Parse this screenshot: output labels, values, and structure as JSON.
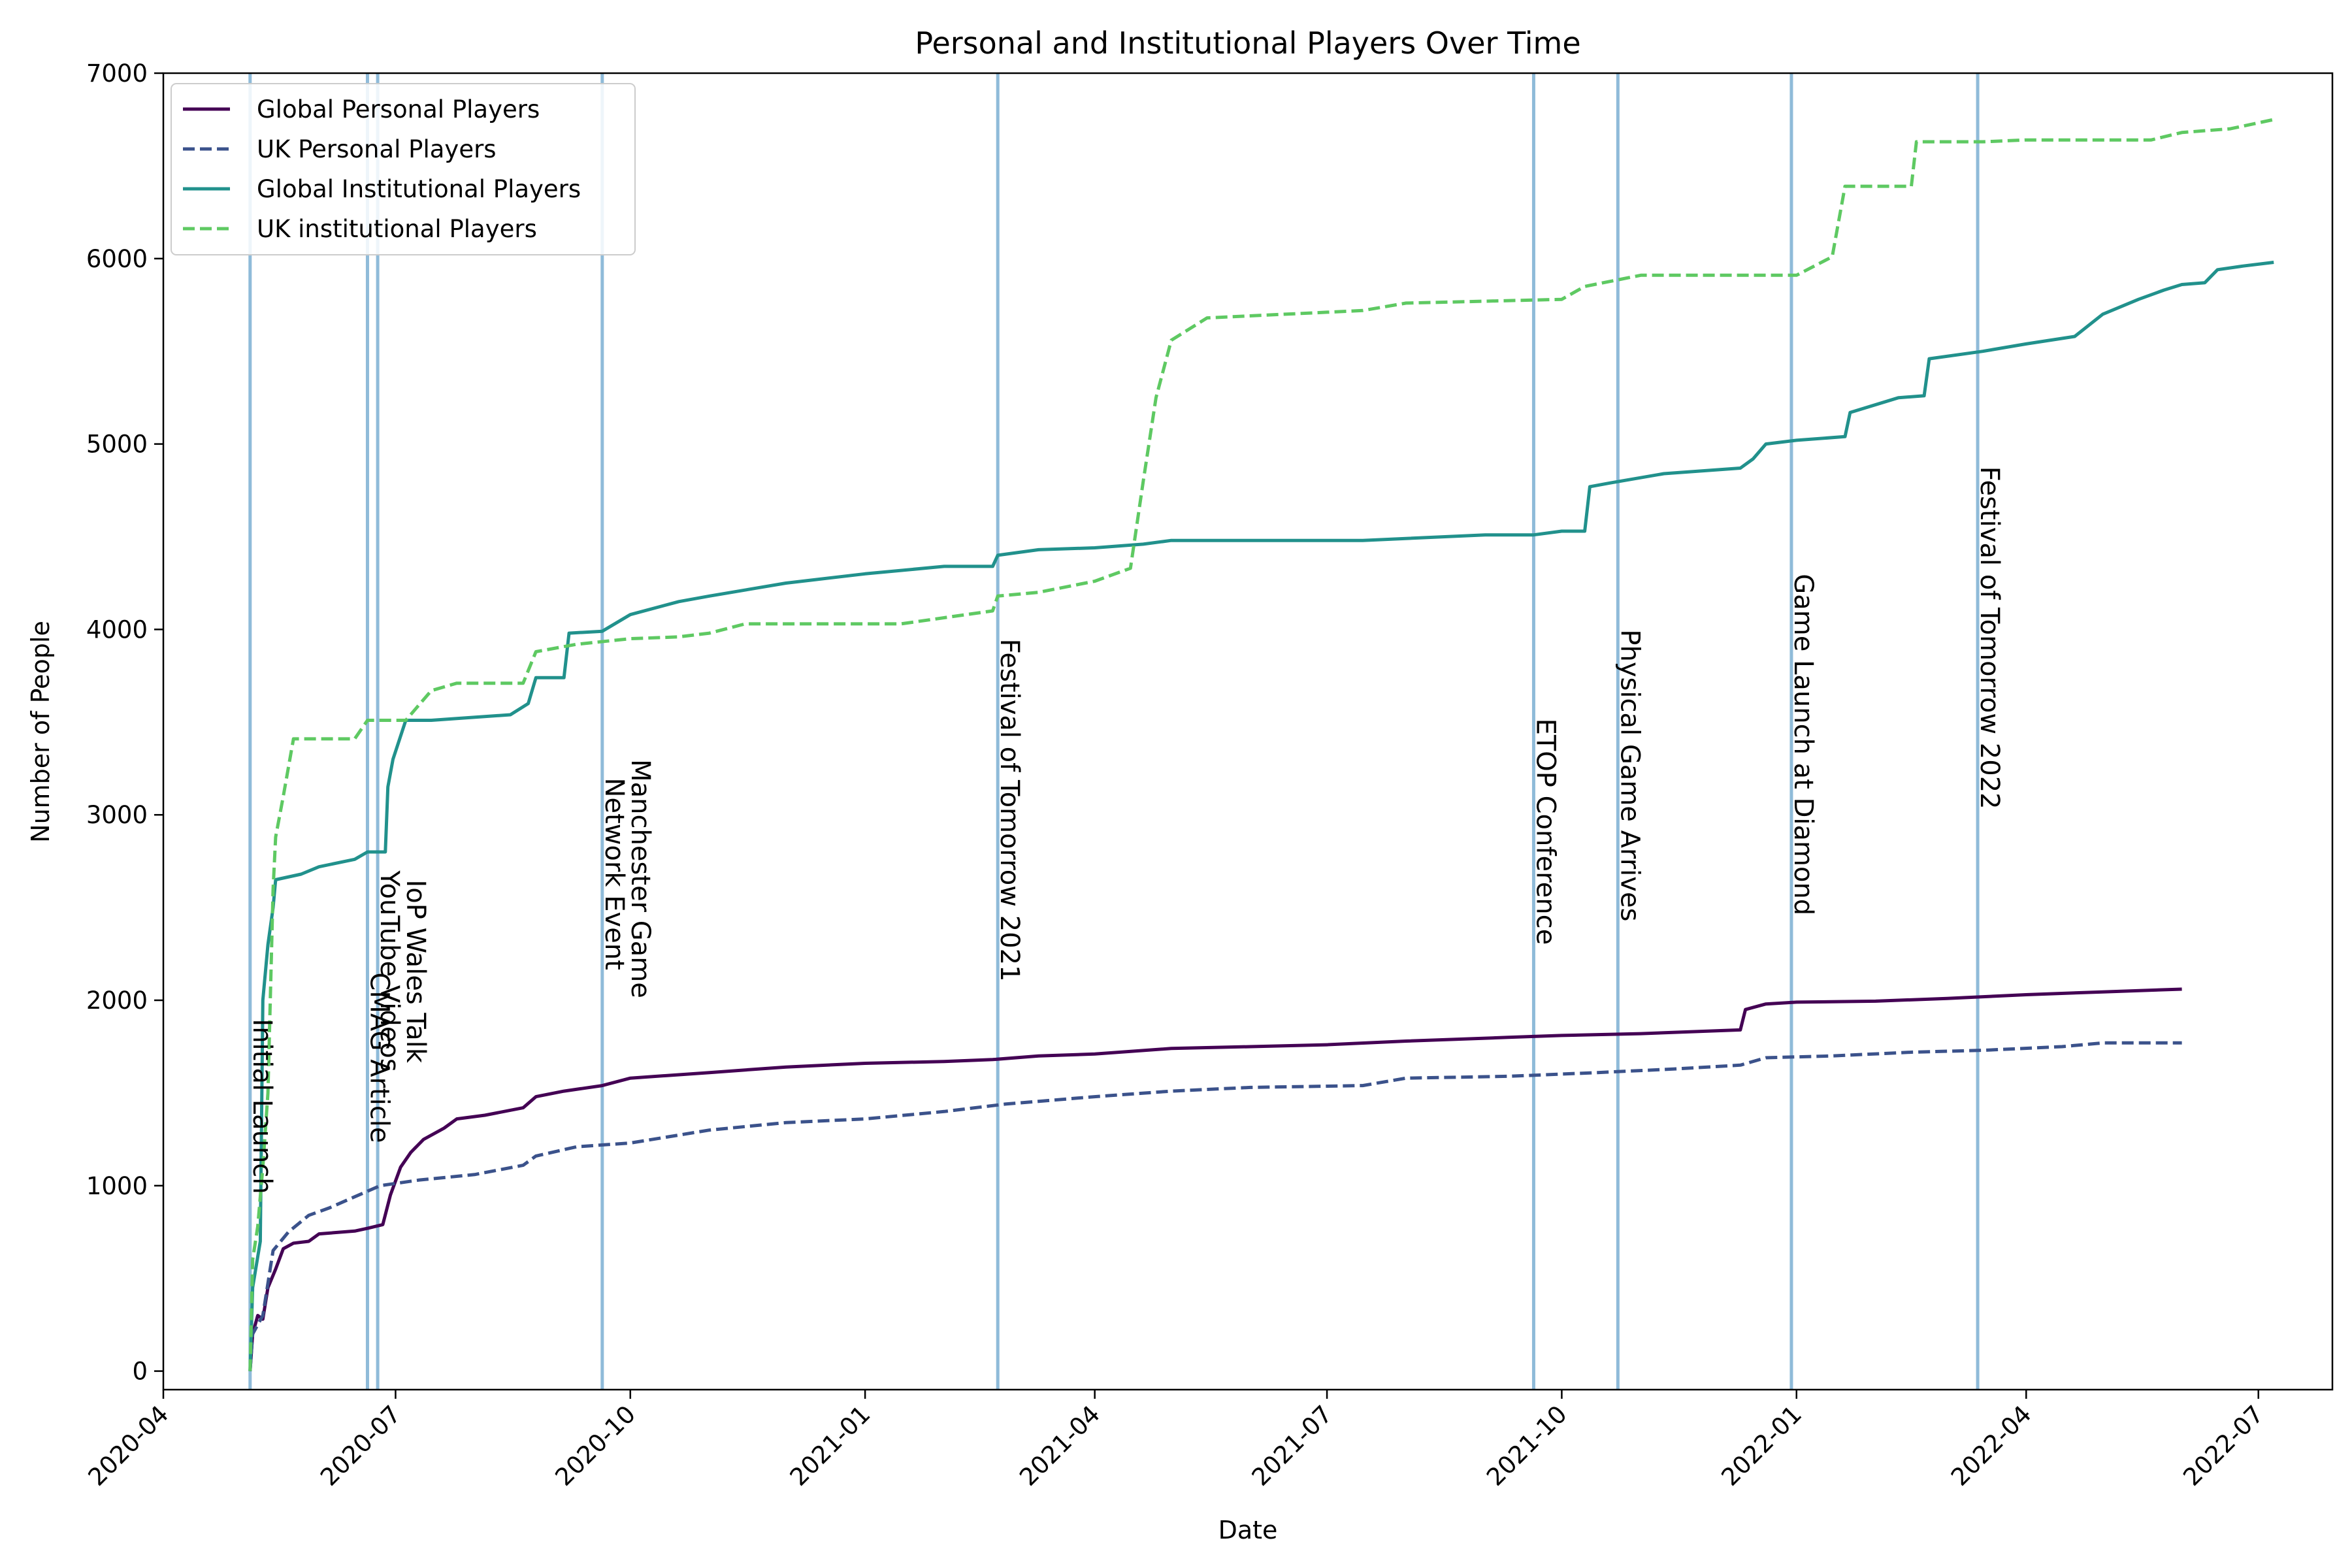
{
  "chart_data": {
    "type": "line",
    "title": "Personal and Institutional Players Over Time",
    "xlabel": "Date",
    "ylabel": "Number of People",
    "ylim": [
      -100,
      7000
    ],
    "xlim": [
      "2020-04-01",
      "2022-07-30"
    ],
    "y_ticks": [
      0,
      1000,
      2000,
      3000,
      4000,
      5000,
      6000,
      7000
    ],
    "x_ticks": [
      "2020-04",
      "2020-07",
      "2020-10",
      "2021-01",
      "2021-04",
      "2021-07",
      "2021-10",
      "2022-01",
      "2022-04",
      "2022-07"
    ],
    "grid": false,
    "legend_position": "top-left",
    "series": [
      {
        "name": "Global Personal Players",
        "color": "#440154",
        "dash": "solid",
        "points": [
          [
            "2020-05-05",
            0
          ],
          [
            "2020-05-06",
            200
          ],
          [
            "2020-05-08",
            300
          ],
          [
            "2020-05-10",
            280
          ],
          [
            "2020-05-12",
            450
          ],
          [
            "2020-05-15",
            550
          ],
          [
            "2020-05-18",
            660
          ],
          [
            "2020-05-22",
            690
          ],
          [
            "2020-05-28",
            700
          ],
          [
            "2020-06-01",
            740
          ],
          [
            "2020-06-15",
            755
          ],
          [
            "2020-06-20",
            770
          ],
          [
            "2020-06-26",
            790
          ],
          [
            "2020-06-29",
            950
          ],
          [
            "2020-07-03",
            1100
          ],
          [
            "2020-07-07",
            1180
          ],
          [
            "2020-07-12",
            1250
          ],
          [
            "2020-07-20",
            1310
          ],
          [
            "2020-07-25",
            1360
          ],
          [
            "2020-08-05",
            1380
          ],
          [
            "2020-08-20",
            1420
          ],
          [
            "2020-08-25",
            1480
          ],
          [
            "2020-09-05",
            1510
          ],
          [
            "2020-09-20",
            1540
          ],
          [
            "2020-10-01",
            1580
          ],
          [
            "2020-11-01",
            1610
          ],
          [
            "2020-12-01",
            1640
          ],
          [
            "2021-01-01",
            1660
          ],
          [
            "2021-02-01",
            1670
          ],
          [
            "2021-02-20",
            1680
          ],
          [
            "2021-03-10",
            1700
          ],
          [
            "2021-04-01",
            1710
          ],
          [
            "2021-05-01",
            1740
          ],
          [
            "2021-06-01",
            1750
          ],
          [
            "2021-07-01",
            1760
          ],
          [
            "2021-08-01",
            1780
          ],
          [
            "2021-09-10",
            1800
          ],
          [
            "2021-10-01",
            1810
          ],
          [
            "2021-11-01",
            1820
          ],
          [
            "2021-12-10",
            1840
          ],
          [
            "2021-12-12",
            1950
          ],
          [
            "2021-12-20",
            1980
          ],
          [
            "2022-01-01",
            1990
          ],
          [
            "2022-02-01",
            1995
          ],
          [
            "2022-03-01",
            2010
          ],
          [
            "2022-04-01",
            2030
          ],
          [
            "2022-05-01",
            2045
          ],
          [
            "2022-06-01",
            2060
          ]
        ]
      },
      {
        "name": "UK Personal Players",
        "color": "#3b528b",
        "dash": "dashed",
        "points": [
          [
            "2020-05-05",
            0
          ],
          [
            "2020-05-06",
            200
          ],
          [
            "2020-05-10",
            300
          ],
          [
            "2020-05-14",
            650
          ],
          [
            "2020-05-20",
            750
          ],
          [
            "2020-05-28",
            840
          ],
          [
            "2020-06-05",
            880
          ],
          [
            "2020-06-15",
            940
          ],
          [
            "2020-06-25",
            1000
          ],
          [
            "2020-07-10",
            1030
          ],
          [
            "2020-08-01",
            1060
          ],
          [
            "2020-08-20",
            1110
          ],
          [
            "2020-08-25",
            1160
          ],
          [
            "2020-09-10",
            1210
          ],
          [
            "2020-10-01",
            1230
          ],
          [
            "2020-11-01",
            1300
          ],
          [
            "2020-12-01",
            1340
          ],
          [
            "2021-01-01",
            1360
          ],
          [
            "2021-02-01",
            1400
          ],
          [
            "2021-02-25",
            1440
          ],
          [
            "2021-04-01",
            1480
          ],
          [
            "2021-05-01",
            1510
          ],
          [
            "2021-06-01",
            1530
          ],
          [
            "2021-07-15",
            1540
          ],
          [
            "2021-08-01",
            1580
          ],
          [
            "2021-09-10",
            1590
          ],
          [
            "2021-10-15",
            1610
          ],
          [
            "2021-11-15",
            1630
          ],
          [
            "2021-12-10",
            1650
          ],
          [
            "2021-12-20",
            1690
          ],
          [
            "2022-01-15",
            1700
          ],
          [
            "2022-02-15",
            1720
          ],
          [
            "2022-03-15",
            1730
          ],
          [
            "2022-04-15",
            1750
          ],
          [
            "2022-05-01",
            1770
          ],
          [
            "2022-06-01",
            1770
          ]
        ]
      },
      {
        "name": "Global Institutional Players",
        "color": "#21918c",
        "dash": "solid",
        "points": [
          [
            "2020-05-05",
            0
          ],
          [
            "2020-05-06",
            450
          ],
          [
            "2020-05-09",
            700
          ],
          [
            "2020-05-10",
            2000
          ],
          [
            "2020-05-12",
            2300
          ],
          [
            "2020-05-14",
            2500
          ],
          [
            "2020-05-15",
            2650
          ],
          [
            "2020-05-25",
            2680
          ],
          [
            "2020-06-01",
            2720
          ],
          [
            "2020-06-15",
            2760
          ],
          [
            "2020-06-20",
            2800
          ],
          [
            "2020-06-27",
            2800
          ],
          [
            "2020-06-28",
            3150
          ],
          [
            "2020-06-30",
            3300
          ],
          [
            "2020-07-05",
            3510
          ],
          [
            "2020-07-15",
            3510
          ],
          [
            "2020-08-15",
            3540
          ],
          [
            "2020-08-22",
            3600
          ],
          [
            "2020-08-25",
            3740
          ],
          [
            "2020-09-05",
            3740
          ],
          [
            "2020-09-07",
            3980
          ],
          [
            "2020-09-20",
            3990
          ],
          [
            "2020-10-01",
            4080
          ],
          [
            "2020-10-20",
            4150
          ],
          [
            "2020-11-01",
            4180
          ],
          [
            "2020-12-01",
            4250
          ],
          [
            "2021-01-01",
            4300
          ],
          [
            "2021-02-01",
            4340
          ],
          [
            "2021-02-20",
            4340
          ],
          [
            "2021-02-22",
            4400
          ],
          [
            "2021-03-10",
            4430
          ],
          [
            "2021-04-01",
            4440
          ],
          [
            "2021-04-20",
            4460
          ],
          [
            "2021-05-01",
            4480
          ],
          [
            "2021-07-15",
            4480
          ],
          [
            "2021-09-01",
            4510
          ],
          [
            "2021-09-20",
            4510
          ],
          [
            "2021-10-01",
            4530
          ],
          [
            "2021-10-10",
            4530
          ],
          [
            "2021-10-12",
            4770
          ],
          [
            "2021-10-20",
            4790
          ],
          [
            "2021-11-10",
            4840
          ],
          [
            "2021-12-10",
            4870
          ],
          [
            "2021-12-15",
            4920
          ],
          [
            "2021-12-20",
            5000
          ],
          [
            "2022-01-01",
            5020
          ],
          [
            "2022-01-20",
            5040
          ],
          [
            "2022-01-22",
            5170
          ],
          [
            "2022-02-10",
            5250
          ],
          [
            "2022-02-20",
            5260
          ],
          [
            "2022-02-22",
            5460
          ],
          [
            "2022-03-15",
            5500
          ],
          [
            "2022-04-01",
            5540
          ],
          [
            "2022-04-20",
            5580
          ],
          [
            "2022-05-01",
            5700
          ],
          [
            "2022-05-15",
            5780
          ],
          [
            "2022-05-25",
            5830
          ],
          [
            "2022-06-01",
            5860
          ],
          [
            "2022-06-10",
            5870
          ],
          [
            "2022-06-15",
            5940
          ],
          [
            "2022-06-25",
            5960
          ],
          [
            "2022-07-07",
            5980
          ]
        ]
      },
      {
        "name": "UK institutional Players",
        "color": "#5ec962",
        "dash": "dashed",
        "points": [
          [
            "2020-05-05",
            0
          ],
          [
            "2020-05-06",
            600
          ],
          [
            "2020-05-08",
            780
          ],
          [
            "2020-05-10",
            1100
          ],
          [
            "2020-05-12",
            1500
          ],
          [
            "2020-05-14",
            2600
          ],
          [
            "2020-05-15",
            2880
          ],
          [
            "2020-05-18",
            3100
          ],
          [
            "2020-05-22",
            3410
          ],
          [
            "2020-06-15",
            3410
          ],
          [
            "2020-06-20",
            3510
          ],
          [
            "2020-07-05",
            3510
          ],
          [
            "2020-07-15",
            3670
          ],
          [
            "2020-07-25",
            3710
          ],
          [
            "2020-08-20",
            3710
          ],
          [
            "2020-08-25",
            3880
          ],
          [
            "2020-09-10",
            3920
          ],
          [
            "2020-10-01",
            3950
          ],
          [
            "2020-10-20",
            3960
          ],
          [
            "2020-11-01",
            3980
          ],
          [
            "2020-11-15",
            4030
          ],
          [
            "2021-01-15",
            4030
          ],
          [
            "2021-02-20",
            4100
          ],
          [
            "2021-02-22",
            4180
          ],
          [
            "2021-03-10",
            4200
          ],
          [
            "2021-04-01",
            4260
          ],
          [
            "2021-04-15",
            4330
          ],
          [
            "2021-04-20",
            4800
          ],
          [
            "2021-04-25",
            5250
          ],
          [
            "2021-05-01",
            5560
          ],
          [
            "2021-05-15",
            5680
          ],
          [
            "2021-07-15",
            5720
          ],
          [
            "2021-08-01",
            5760
          ],
          [
            "2021-10-01",
            5780
          ],
          [
            "2021-10-10",
            5850
          ],
          [
            "2021-11-01",
            5910
          ],
          [
            "2022-01-01",
            5910
          ],
          [
            "2022-01-15",
            6010
          ],
          [
            "2022-01-20",
            6390
          ],
          [
            "2022-02-15",
            6390
          ],
          [
            "2022-02-17",
            6630
          ],
          [
            "2022-03-15",
            6630
          ],
          [
            "2022-04-01",
            6640
          ],
          [
            "2022-05-20",
            6640
          ],
          [
            "2022-06-01",
            6680
          ],
          [
            "2022-06-20",
            6700
          ],
          [
            "2022-07-07",
            6750
          ]
        ]
      }
    ],
    "events": [
      {
        "date": "2020-05-05",
        "label": "Initial Launch",
        "label_y": 1900
      },
      {
        "date": "2020-06-20",
        "label": "CMAG Article",
        "label_y": 2150
      },
      {
        "date": "2020-06-24",
        "label": "YouTube Videos",
        "label_y": 2700
      },
      {
        "date": "2020-06-24",
        "label": "IoP Wales Talk",
        "label_y": 2650
      },
      {
        "date": "2020-09-20",
        "label": "Network Event",
        "label_y": 3200
      },
      {
        "date": "2020-09-20",
        "label": "Manchester Game",
        "label_y": 3300
      },
      {
        "date": "2021-02-22",
        "label": "Festival of Tomorrow 2021",
        "label_y": 3950
      },
      {
        "date": "2021-09-20",
        "label": "ETOP Conference",
        "label_y": 3520
      },
      {
        "date": "2021-10-23",
        "label": "Physical Game Arrives",
        "label_y": 4000
      },
      {
        "date": "2021-12-30",
        "label": "Game Launch at Diamond",
        "label_y": 4300
      },
      {
        "date": "2022-03-13",
        "label": "Festival of Tomorrow 2022",
        "label_y": 4880
      }
    ]
  }
}
